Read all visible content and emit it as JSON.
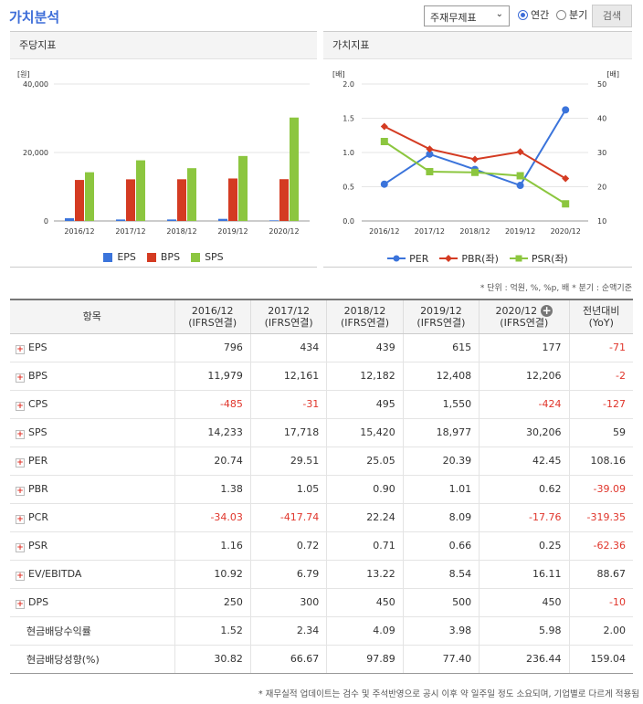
{
  "header": {
    "title": "가치분석",
    "select_value": "주재무제표",
    "radio_annual": "연간",
    "radio_quarter": "분기",
    "search_label": "검색"
  },
  "panels": {
    "left_title": "주당지표",
    "right_title": "가치지표"
  },
  "chart_data": [
    {
      "type": "bar",
      "title": "주당지표",
      "categories": [
        "2016/12",
        "2017/12",
        "2018/12",
        "2019/12",
        "2020/12"
      ],
      "series": [
        {
          "name": "EPS",
          "values": [
            796,
            434,
            439,
            615,
            177
          ],
          "color": "#3b74db"
        },
        {
          "name": "BPS",
          "values": [
            11979,
            12161,
            12182,
            12408,
            12206
          ],
          "color": "#d43b22"
        },
        {
          "name": "SPS",
          "values": [
            14233,
            17718,
            15420,
            18977,
            30206
          ],
          "color": "#8cc63f"
        }
      ],
      "ylabel": "[원]",
      "yticks": [
        "0",
        "20,000",
        "40,000"
      ],
      "ylim": [
        0,
        40000
      ]
    },
    {
      "type": "line",
      "title": "가치지표",
      "categories": [
        "2016/12",
        "2017/12",
        "2018/12",
        "2019/12",
        "2020/12"
      ],
      "series": [
        {
          "name": "PER",
          "axis": "right",
          "values": [
            20.74,
            29.51,
            25.05,
            20.39,
            42.45
          ],
          "color": "#3b74db"
        },
        {
          "name": "PBR(좌)",
          "axis": "left",
          "values": [
            1.38,
            1.05,
            0.9,
            1.01,
            0.62
          ],
          "color": "#d43b22"
        },
        {
          "name": "PSR(좌)",
          "axis": "left",
          "values": [
            1.16,
            0.72,
            0.71,
            0.66,
            0.25
          ],
          "color": "#8cc63f"
        }
      ],
      "ylabel_left": "[배]",
      "ylabel_right": "[배]",
      "yticks_left": [
        "0.0",
        "0.5",
        "1.0",
        "1.5",
        "2.0"
      ],
      "yticks_right": [
        "10",
        "20",
        "30",
        "40",
        "50"
      ],
      "ylim_left": [
        0,
        2
      ],
      "ylim_right": [
        10,
        50
      ]
    }
  ],
  "unit_note": "* 단위 : 억원, %, %p, 배   * 분기 : 순액기준",
  "table": {
    "col_item": "항목",
    "columns": [
      {
        "year": "2016/12",
        "basis": "(IFRS연결)"
      },
      {
        "year": "2017/12",
        "basis": "(IFRS연결)"
      },
      {
        "year": "2018/12",
        "basis": "(IFRS연결)"
      },
      {
        "year": "2019/12",
        "basis": "(IFRS연결)"
      },
      {
        "year": "2020/12",
        "basis": "(IFRS연결)"
      }
    ],
    "yoy_line1": "전년대비",
    "yoy_line2": "(YoY)",
    "rows": [
      {
        "label": "EPS",
        "expand": true,
        "values": [
          "796",
          "434",
          "439",
          "615",
          "177"
        ],
        "yoy": "-71"
      },
      {
        "label": "BPS",
        "expand": true,
        "values": [
          "11,979",
          "12,161",
          "12,182",
          "12,408",
          "12,206"
        ],
        "yoy": "-2"
      },
      {
        "label": "CPS",
        "expand": true,
        "values": [
          "-485",
          "-31",
          "495",
          "1,550",
          "-424"
        ],
        "yoy": "-127"
      },
      {
        "label": "SPS",
        "expand": true,
        "values": [
          "14,233",
          "17,718",
          "15,420",
          "18,977",
          "30,206"
        ],
        "yoy": "59"
      },
      {
        "label": "PER",
        "expand": true,
        "values": [
          "20.74",
          "29.51",
          "25.05",
          "20.39",
          "42.45"
        ],
        "yoy": "108.16"
      },
      {
        "label": "PBR",
        "expand": true,
        "values": [
          "1.38",
          "1.05",
          "0.90",
          "1.01",
          "0.62"
        ],
        "yoy": "-39.09"
      },
      {
        "label": "PCR",
        "expand": true,
        "values": [
          "-34.03",
          "-417.74",
          "22.24",
          "8.09",
          "-17.76"
        ],
        "yoy": "-319.35"
      },
      {
        "label": "PSR",
        "expand": true,
        "values": [
          "1.16",
          "0.72",
          "0.71",
          "0.66",
          "0.25"
        ],
        "yoy": "-62.36"
      },
      {
        "label": "EV/EBITDA",
        "expand": true,
        "values": [
          "10.92",
          "6.79",
          "13.22",
          "8.54",
          "16.11"
        ],
        "yoy": "88.67"
      },
      {
        "label": "DPS",
        "expand": true,
        "values": [
          "250",
          "300",
          "450",
          "500",
          "450"
        ],
        "yoy": "-10"
      },
      {
        "label": "현금배당수익률",
        "expand": false,
        "values": [
          "1.52",
          "2.34",
          "4.09",
          "3.98",
          "5.98"
        ],
        "yoy": "2.00"
      },
      {
        "label": "현금배당성향(%)",
        "expand": false,
        "values": [
          "30.82",
          "66.67",
          "97.89",
          "77.40",
          "236.44"
        ],
        "yoy": "159.04"
      }
    ]
  },
  "footnote": "* 재무실적 업데이트는 검수 및 주석반영으로 공시 이후 약 일주일 정도 소요되며, 기업별로 다르게 적용됨"
}
